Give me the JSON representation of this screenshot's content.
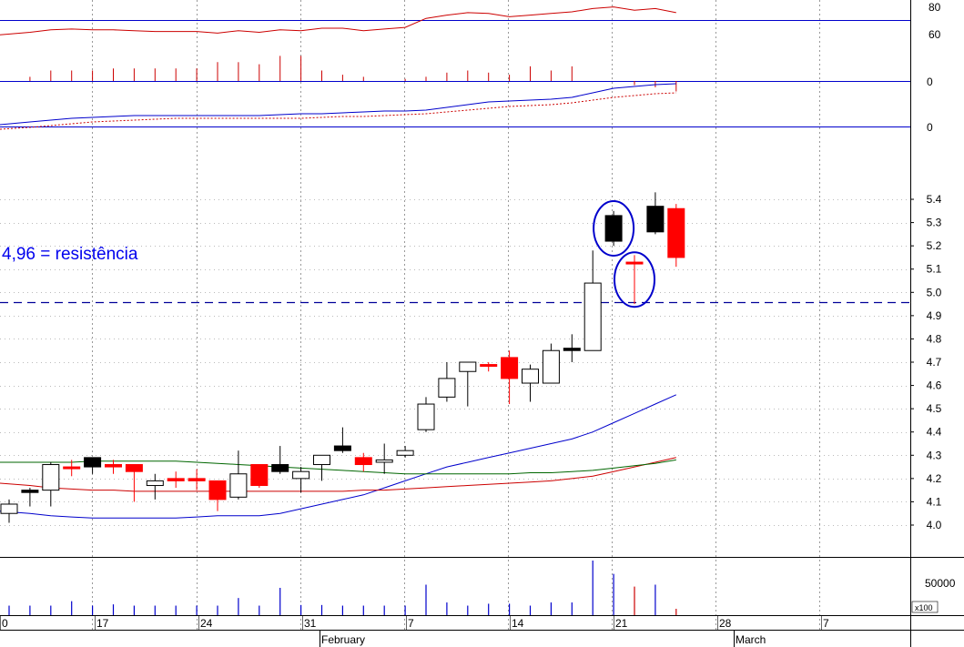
{
  "chart_data": {
    "type": "candlestick",
    "annotation": "4,96 = resistência",
    "resistance": 4.96,
    "price_axis": {
      "ticks": [
        4.0,
        4.1,
        4.2,
        4.3,
        4.4,
        4.5,
        4.6,
        4.7,
        4.8,
        4.9,
        5.0,
        5.1,
        5.2,
        5.3,
        5.4
      ]
    },
    "date_ticks": [
      "0",
      "17",
      "24",
      "31",
      "7",
      "14",
      "21",
      "28",
      "7"
    ],
    "month_labels": [
      "February",
      "March"
    ],
    "candles": [
      {
        "o": 4.05,
        "h": 4.11,
        "l": 4.01,
        "c": 4.09,
        "color": "hollow"
      },
      {
        "o": 4.14,
        "h": 4.16,
        "l": 4.08,
        "c": 4.15,
        "color": "black"
      },
      {
        "o": 4.15,
        "h": 4.27,
        "l": 4.08,
        "c": 4.26,
        "color": "hollow"
      },
      {
        "o": 4.25,
        "h": 4.28,
        "l": 4.21,
        "c": 4.25,
        "color": "red"
      },
      {
        "o": 4.25,
        "h": 4.29,
        "l": 4.22,
        "c": 4.29,
        "color": "black"
      },
      {
        "o": 4.26,
        "h": 4.28,
        "l": 4.22,
        "c": 4.25,
        "color": "red"
      },
      {
        "o": 4.26,
        "h": 4.26,
        "l": 4.1,
        "c": 4.23,
        "color": "red"
      },
      {
        "o": 4.17,
        "h": 4.22,
        "l": 4.11,
        "c": 4.19,
        "color": "hollow"
      },
      {
        "o": 4.2,
        "h": 4.23,
        "l": 4.16,
        "c": 4.19,
        "color": "red"
      },
      {
        "o": 4.2,
        "h": 4.24,
        "l": 4.15,
        "c": 4.19,
        "color": "red"
      },
      {
        "o": 4.19,
        "h": 4.19,
        "l": 4.06,
        "c": 4.11,
        "color": "red"
      },
      {
        "o": 4.12,
        "h": 4.32,
        "l": 4.11,
        "c": 4.22,
        "color": "hollow"
      },
      {
        "o": 4.26,
        "h": 4.26,
        "l": 4.16,
        "c": 4.17,
        "color": "red"
      },
      {
        "o": 4.23,
        "h": 4.34,
        "l": 4.22,
        "c": 4.26,
        "color": "black"
      },
      {
        "o": 4.2,
        "h": 4.25,
        "l": 4.14,
        "c": 4.23,
        "color": "hollow"
      },
      {
        "o": 4.26,
        "h": 4.3,
        "l": 4.19,
        "c": 4.3,
        "color": "hollow"
      },
      {
        "o": 4.34,
        "h": 4.42,
        "l": 4.31,
        "c": 4.32,
        "color": "black"
      },
      {
        "o": 4.29,
        "h": 4.31,
        "l": 4.23,
        "c": 4.26,
        "color": "red"
      },
      {
        "o": 4.27,
        "h": 4.35,
        "l": 4.22,
        "c": 4.28,
        "color": "hollow"
      },
      {
        "o": 4.3,
        "h": 4.34,
        "l": 4.29,
        "c": 4.32,
        "color": "hollow"
      },
      {
        "o": 4.41,
        "h": 4.55,
        "l": 4.4,
        "c": 4.52,
        "color": "hollow"
      },
      {
        "o": 4.55,
        "h": 4.7,
        "l": 4.53,
        "c": 4.63,
        "color": "hollow"
      },
      {
        "o": 4.66,
        "h": 4.7,
        "l": 4.51,
        "c": 4.7,
        "color": "hollow"
      },
      {
        "o": 4.69,
        "h": 4.7,
        "l": 4.66,
        "c": 4.69,
        "color": "red"
      },
      {
        "o": 4.72,
        "h": 4.75,
        "l": 4.52,
        "c": 4.63,
        "color": "red"
      },
      {
        "o": 4.61,
        "h": 4.69,
        "l": 4.53,
        "c": 4.67,
        "color": "hollow"
      },
      {
        "o": 4.61,
        "h": 4.78,
        "l": 4.61,
        "c": 4.75,
        "color": "hollow"
      },
      {
        "o": 4.75,
        "h": 4.82,
        "l": 4.7,
        "c": 4.76,
        "color": "black"
      },
      {
        "o": 4.75,
        "h": 5.18,
        "l": 4.75,
        "c": 5.04,
        "color": "hollow"
      },
      {
        "o": 5.33,
        "h": 5.35,
        "l": 5.2,
        "c": 5.22,
        "color": "black"
      },
      {
        "o": 5.13,
        "h": 5.16,
        "l": 4.95,
        "c": 5.13,
        "color": "red"
      },
      {
        "o": 5.37,
        "h": 5.43,
        "l": 5.25,
        "c": 5.26,
        "color": "black"
      },
      {
        "o": 5.36,
        "h": 5.38,
        "l": 5.11,
        "c": 5.15,
        "color": "red"
      }
    ],
    "moving_averages": [
      {
        "color": "#0000cc",
        "values": [
          4.06,
          4.05,
          4.04,
          4.035,
          4.03,
          4.03,
          4.03,
          4.03,
          4.03,
          4.035,
          4.04,
          4.04,
          4.04,
          4.05,
          4.07,
          4.09,
          4.11,
          4.13,
          4.16,
          4.19,
          4.22,
          4.25,
          4.27,
          4.29,
          4.31,
          4.33,
          4.35,
          4.37,
          4.4,
          4.44,
          4.48,
          4.52,
          4.56
        ]
      },
      {
        "color": "#cc0000",
        "values": [
          4.18,
          4.17,
          4.16,
          4.155,
          4.15,
          4.15,
          4.145,
          4.145,
          4.145,
          4.145,
          4.145,
          4.145,
          4.145,
          4.145,
          4.145,
          4.145,
          4.145,
          4.15,
          4.15,
          4.155,
          4.16,
          4.165,
          4.17,
          4.175,
          4.18,
          4.185,
          4.19,
          4.2,
          4.21,
          4.23,
          4.25,
          4.27,
          4.29
        ]
      },
      {
        "color": "#006600",
        "values": [
          4.27,
          4.27,
          4.27,
          4.27,
          4.275,
          4.275,
          4.275,
          4.275,
          4.275,
          4.27,
          4.265,
          4.26,
          4.255,
          4.25,
          4.245,
          4.24,
          4.235,
          4.23,
          4.225,
          4.22,
          4.22,
          4.22,
          4.22,
          4.22,
          4.22,
          4.225,
          4.225,
          4.23,
          4.235,
          4.245,
          4.255,
          4.265,
          4.28
        ]
      }
    ],
    "volume": {
      "unit_label": "x100",
      "ticks": [
        50000
      ],
      "values": [
        15000,
        15000,
        15000,
        22000,
        15000,
        17000,
        15000,
        15000,
        15000,
        15000,
        15000,
        27000,
        15000,
        43000,
        16000,
        16000,
        15000,
        15000,
        15000,
        15000,
        48000,
        20000,
        15000,
        18000,
        18000,
        15000,
        20000,
        20000,
        86000,
        65000,
        45000,
        48000,
        10000
      ],
      "colors": [
        "blue",
        "blue",
        "blue",
        "blue",
        "blue",
        "blue",
        "blue",
        "blue",
        "blue",
        "blue",
        "blue",
        "blue",
        "blue",
        "blue",
        "blue",
        "blue",
        "blue",
        "blue",
        "blue",
        "blue",
        "blue",
        "blue",
        "blue",
        "blue",
        "blue",
        "blue",
        "blue",
        "blue",
        "blue",
        "blue",
        "red",
        "blue",
        "red"
      ]
    },
    "rsi": {
      "ticks": [
        60,
        80
      ],
      "values": [
        52,
        55,
        58,
        59,
        58,
        58,
        57,
        56,
        56,
        56,
        54,
        57,
        55,
        58,
        57,
        60,
        60,
        57,
        59,
        61,
        72,
        76,
        79,
        78,
        74,
        76,
        78,
        80,
        84,
        86,
        82,
        84,
        79
      ]
    },
    "histogram": {
      "ticks": [
        0
      ],
      "values": [
        0,
        0.02,
        0.05,
        0.05,
        0.05,
        0.06,
        0.06,
        0.06,
        0.06,
        0.06,
        0.09,
        0.09,
        0.08,
        0.12,
        0.12,
        0.05,
        0.03,
        0.02,
        0.0,
        0.01,
        0.02,
        0.04,
        0.05,
        0.04,
        0.03,
        0.07,
        0.05,
        0.07,
        0.0,
        0.0,
        -0.02,
        -0.03,
        -0.05
      ]
    },
    "macd": {
      "ticks": [
        0
      ],
      "line": [
        -0.1,
        -0.07,
        -0.05,
        -0.03,
        -0.02,
        -0.01,
        0.0,
        0.0,
        0.0,
        0.0,
        0.0,
        0.0,
        0.0,
        0.01,
        0.02,
        0.02,
        0.03,
        0.04,
        0.05,
        0.05,
        0.06,
        0.09,
        0.12,
        0.15,
        0.16,
        0.17,
        0.18,
        0.2,
        0.25,
        0.3,
        0.32,
        0.34,
        0.35
      ],
      "signal": [
        -0.12,
        -0.1,
        -0.08,
        -0.06,
        -0.04,
        -0.03,
        -0.02,
        -0.01,
        0.0,
        0.0,
        0.0,
        0.0,
        0.0,
        0.0,
        0.0,
        0.01,
        0.02,
        0.02,
        0.03,
        0.04,
        0.05,
        0.07,
        0.09,
        0.11,
        0.13,
        0.14,
        0.15,
        0.17,
        0.2,
        0.23,
        0.25,
        0.27,
        0.28
      ]
    }
  }
}
